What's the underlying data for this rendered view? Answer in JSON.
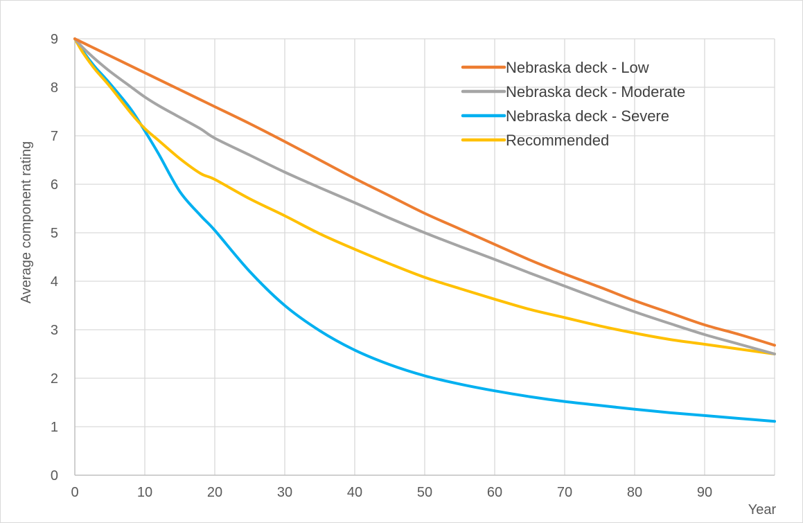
{
  "chart_data": {
    "type": "line",
    "title": "",
    "xlabel": "Year",
    "ylabel": "Average component rating",
    "xlim": [
      0,
      100
    ],
    "ylim": [
      0,
      9
    ],
    "x_ticks": [
      0,
      10,
      20,
      30,
      40,
      50,
      60,
      70,
      80,
      90
    ],
    "y_ticks": [
      0,
      1,
      2,
      3,
      4,
      5,
      6,
      7,
      8,
      9
    ],
    "grid": true,
    "legend_position": "top-right",
    "x": [
      0,
      1,
      2,
      3,
      5,
      8,
      10,
      12,
      15,
      18,
      20,
      25,
      30,
      35,
      40,
      45,
      50,
      55,
      60,
      65,
      70,
      75,
      80,
      85,
      90,
      95,
      100
    ],
    "series": [
      {
        "name": "Nebraska deck - Low",
        "color": "#ED7D31",
        "values": [
          9.0,
          8.93,
          8.86,
          8.79,
          8.65,
          8.44,
          8.3,
          8.16,
          7.95,
          7.74,
          7.6,
          7.25,
          6.88,
          6.5,
          6.12,
          5.76,
          5.4,
          5.08,
          4.76,
          4.44,
          4.15,
          3.88,
          3.6,
          3.35,
          3.1,
          2.9,
          2.68
        ]
      },
      {
        "name": "Nebraska deck - Moderate",
        "color": "#A5A5A5",
        "values": [
          9.0,
          8.84,
          8.7,
          8.57,
          8.33,
          8.01,
          7.8,
          7.62,
          7.38,
          7.14,
          6.95,
          6.6,
          6.25,
          5.93,
          5.62,
          5.3,
          5.0,
          4.72,
          4.45,
          4.17,
          3.9,
          3.63,
          3.37,
          3.13,
          2.9,
          2.7,
          2.5
        ]
      },
      {
        "name": "Nebraska deck - Severe",
        "color": "#00B0F0",
        "values": [
          9.0,
          8.78,
          8.58,
          8.4,
          8.08,
          7.55,
          7.1,
          6.62,
          5.85,
          5.35,
          5.05,
          4.2,
          3.5,
          2.98,
          2.58,
          2.28,
          2.05,
          1.88,
          1.74,
          1.62,
          1.52,
          1.44,
          1.36,
          1.29,
          1.23,
          1.17,
          1.11
        ]
      },
      {
        "name": "Recommended",
        "color": "#FFC000",
        "values": [
          9.0,
          8.75,
          8.54,
          8.35,
          8.02,
          7.47,
          7.15,
          6.9,
          6.53,
          6.22,
          6.1,
          5.7,
          5.35,
          4.98,
          4.66,
          4.36,
          4.08,
          3.85,
          3.63,
          3.42,
          3.25,
          3.08,
          2.93,
          2.8,
          2.7,
          2.6,
          2.5
        ]
      }
    ]
  }
}
